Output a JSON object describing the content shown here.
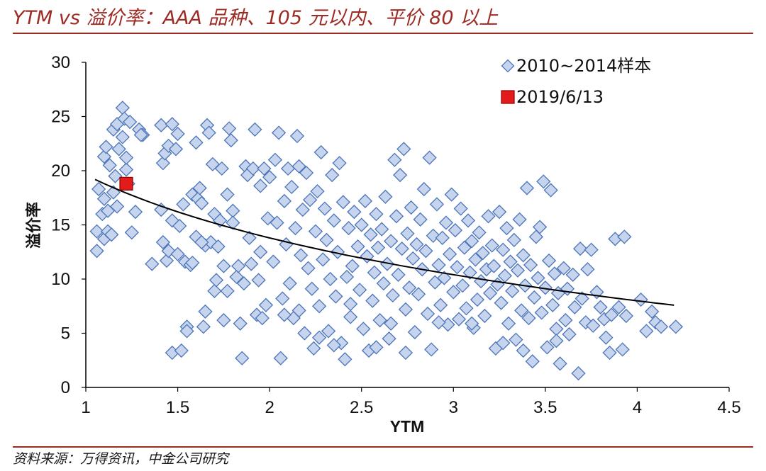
{
  "header": {
    "title": "YTM vs  溢价率：AAA 品种、105 元以内、平价 80 以上"
  },
  "footer": {
    "source": "资料来源：万得资讯，中金公司研究"
  },
  "colors": {
    "accent": "#9c2b24",
    "scatter_fill": "#c6d4ee",
    "scatter_stroke": "#4b74b9",
    "highlight": "#e31b1b",
    "trend": "#000000"
  },
  "chart_data": {
    "type": "scatter",
    "xlabel": "YTM",
    "ylabel": "溢价率",
    "xlim": [
      1,
      4.5
    ],
    "ylim": [
      0,
      30
    ],
    "xticks": [
      "1",
      "1.5",
      "2",
      "2.5",
      "3",
      "3.5",
      "4",
      "4.5"
    ],
    "yticks": [
      "0",
      "5",
      "10",
      "15",
      "20",
      "25",
      "30"
    ],
    "grid": false,
    "legend_position": "top-right",
    "series": [
      {
        "name": "2010~2014样本",
        "marker": "diamond",
        "points": [
          [
            1.06,
            12.6
          ],
          [
            1.06,
            14.4
          ],
          [
            1.07,
            18.3
          ],
          [
            1.09,
            16.0
          ],
          [
            1.1,
            13.7
          ],
          [
            1.1,
            17.4
          ],
          [
            1.1,
            21.3
          ],
          [
            1.11,
            22.2
          ],
          [
            1.12,
            14.4
          ],
          [
            1.12,
            16.3
          ],
          [
            1.13,
            20.5
          ],
          [
            1.14,
            14.1
          ],
          [
            1.15,
            18.0
          ],
          [
            1.15,
            23.8
          ],
          [
            1.16,
            19.5
          ],
          [
            1.17,
            24.3
          ],
          [
            1.17,
            16.7
          ],
          [
            1.18,
            22.0
          ],
          [
            1.2,
            25.8
          ],
          [
            1.2,
            23.1
          ],
          [
            1.21,
            24.8
          ],
          [
            1.22,
            20.1
          ],
          [
            1.22,
            21.2
          ],
          [
            1.23,
            18.8
          ],
          [
            1.24,
            24.5
          ],
          [
            1.25,
            14.3
          ],
          [
            1.27,
            16.2
          ],
          [
            1.29,
            23.8
          ],
          [
            1.31,
            23.3
          ],
          [
            1.41,
            24.2
          ],
          [
            1.41,
            16.4
          ],
          [
            1.42,
            20.7
          ],
          [
            1.42,
            13.4
          ],
          [
            1.43,
            21.6
          ],
          [
            1.44,
            11.7
          ],
          [
            1.45,
            22.3
          ],
          [
            1.45,
            12.6
          ],
          [
            1.47,
            24.3
          ],
          [
            1.47,
            15.4
          ],
          [
            1.47,
            3.2
          ],
          [
            1.49,
            22.0
          ],
          [
            1.5,
            23.4
          ],
          [
            1.5,
            12.3
          ],
          [
            1.51,
            14.9
          ],
          [
            1.52,
            3.4
          ],
          [
            1.53,
            16.9
          ],
          [
            1.54,
            11.6
          ],
          [
            1.55,
            5.6
          ],
          [
            1.55,
            5.2
          ],
          [
            1.57,
            11.3
          ],
          [
            1.58,
            17.8
          ],
          [
            1.6,
            22.6
          ],
          [
            1.6,
            13.9
          ],
          [
            1.61,
            17.4
          ],
          [
            1.62,
            18.4
          ],
          [
            1.63,
            17.0
          ],
          [
            1.64,
            5.6
          ],
          [
            1.65,
            13.1
          ],
          [
            1.65,
            7.0
          ],
          [
            1.66,
            24.2
          ],
          [
            1.67,
            23.5
          ],
          [
            1.68,
            13.4
          ],
          [
            1.69,
            20.6
          ],
          [
            1.7,
            16.0
          ],
          [
            1.7,
            8.9
          ],
          [
            1.71,
            9.9
          ],
          [
            1.72,
            13.0
          ],
          [
            1.73,
            15.4
          ],
          [
            1.74,
            20.2
          ],
          [
            1.75,
            11.2
          ],
          [
            1.75,
            6.2
          ],
          [
            1.77,
            8.9
          ],
          [
            1.77,
            17.8
          ],
          [
            1.78,
            23.9
          ],
          [
            1.79,
            22.8
          ],
          [
            1.8,
            16.3
          ],
          [
            1.82,
            10.2
          ],
          [
            1.83,
            11.2
          ],
          [
            1.84,
            5.9
          ],
          [
            1.85,
            2.7
          ],
          [
            1.86,
            9.6
          ],
          [
            1.87,
            20.4
          ],
          [
            1.88,
            19.6
          ],
          [
            1.89,
            13.8
          ],
          [
            1.9,
            11.4
          ],
          [
            1.91,
            20.2
          ],
          [
            1.92,
            23.8
          ],
          [
            1.93,
            6.7
          ],
          [
            1.94,
            9.9
          ],
          [
            1.95,
            12.5
          ],
          [
            1.95,
            18.6
          ],
          [
            1.97,
            20.2
          ],
          [
            1.98,
            7.6
          ],
          [
            1.99,
            15.6
          ],
          [
            2.0,
            19.4
          ],
          [
            2.02,
            11.6
          ],
          [
            2.03,
            21.0
          ],
          [
            2.04,
            15.2
          ],
          [
            2.05,
            23.5
          ],
          [
            2.06,
            2.7
          ],
          [
            2.07,
            8.2
          ],
          [
            2.08,
            17.2
          ],
          [
            2.09,
            13.2
          ],
          [
            2.1,
            20.2
          ],
          [
            2.11,
            9.6
          ],
          [
            2.12,
            18.5
          ],
          [
            2.13,
            6.4
          ],
          [
            2.14,
            14.7
          ],
          [
            2.15,
            23.2
          ],
          [
            2.16,
            20.4
          ],
          [
            2.17,
            12.2
          ],
          [
            2.18,
            16.4
          ],
          [
            2.19,
            5.0
          ],
          [
            2.2,
            19.8
          ],
          [
            2.21,
            11.0
          ],
          [
            2.22,
            17.3
          ],
          [
            2.23,
            9.1
          ],
          [
            2.24,
            3.6
          ],
          [
            2.25,
            14.4
          ],
          [
            2.26,
            18.1
          ],
          [
            2.27,
            7.5
          ],
          [
            2.28,
            21.7
          ],
          [
            2.29,
            11.8
          ],
          [
            2.3,
            16.5
          ],
          [
            2.31,
            13.6
          ],
          [
            2.32,
            5.2
          ],
          [
            2.33,
            10.0
          ],
          [
            2.34,
            19.6
          ],
          [
            2.35,
            15.4
          ],
          [
            2.36,
            8.4
          ],
          [
            2.37,
            12.5
          ],
          [
            2.38,
            20.7
          ],
          [
            2.39,
            4.1
          ],
          [
            2.4,
            17.1
          ],
          [
            2.41,
            2.6
          ],
          [
            2.42,
            10.2
          ],
          [
            2.43,
            14.7
          ],
          [
            2.44,
            6.5
          ],
          [
            2.45,
            11.2
          ],
          [
            2.46,
            16.2
          ],
          [
            2.48,
            13.0
          ],
          [
            2.49,
            9.0
          ],
          [
            2.5,
            15.0
          ],
          [
            2.51,
            5.4
          ],
          [
            2.52,
            17.2
          ],
          [
            2.53,
            12.1
          ],
          [
            2.54,
            3.4
          ],
          [
            2.55,
            14.1
          ],
          [
            2.56,
            8.0
          ],
          [
            2.57,
            10.6
          ],
          [
            2.58,
            16.0
          ],
          [
            2.59,
            12.9
          ],
          [
            2.6,
            6.2
          ],
          [
            2.61,
            14.6
          ],
          [
            2.62,
            9.6
          ],
          [
            2.63,
            17.6
          ],
          [
            2.64,
            11.4
          ],
          [
            2.65,
            4.5
          ],
          [
            2.66,
            13.5
          ],
          [
            2.67,
            8.5
          ],
          [
            2.68,
            21.0
          ],
          [
            2.69,
            15.8
          ],
          [
            2.7,
            10.4
          ],
          [
            2.71,
            19.6
          ],
          [
            2.72,
            12.8
          ],
          [
            2.73,
            22.0
          ],
          [
            2.74,
            7.2
          ],
          [
            2.75,
            14.2
          ],
          [
            2.76,
            9.2
          ],
          [
            2.77,
            16.6
          ],
          [
            2.78,
            11.9
          ],
          [
            2.79,
            5.1
          ],
          [
            2.8,
            13.2
          ],
          [
            2.81,
            8.6
          ],
          [
            2.82,
            15.5
          ],
          [
            2.83,
            10.9
          ],
          [
            2.84,
            18.3
          ],
          [
            2.85,
            12.6
          ],
          [
            2.86,
            6.8
          ],
          [
            2.87,
            21.2
          ],
          [
            2.88,
            3.5
          ],
          [
            2.89,
            14.0
          ],
          [
            2.9,
            9.7
          ],
          [
            2.91,
            16.9
          ],
          [
            2.92,
            11.3
          ],
          [
            2.93,
            7.6
          ],
          [
            2.94,
            13.8
          ],
          [
            2.95,
            10.1
          ],
          [
            2.96,
            15.2
          ],
          [
            2.97,
            5.8
          ],
          [
            2.98,
            12.3
          ],
          [
            2.99,
            17.8
          ],
          [
            3.0,
            8.8
          ],
          [
            3.01,
            14.5
          ],
          [
            3.02,
            11.1
          ],
          [
            3.03,
            6.3
          ],
          [
            3.04,
            16.5
          ],
          [
            3.05,
            9.4
          ],
          [
            3.06,
            12.9
          ],
          [
            3.07,
            7.3
          ],
          [
            3.08,
            15.4
          ],
          [
            3.09,
            10.6
          ],
          [
            3.1,
            13.5
          ],
          [
            3.11,
            5.5
          ],
          [
            3.12,
            11.8
          ],
          [
            3.13,
            8.1
          ],
          [
            3.14,
            14.3
          ],
          [
            3.15,
            9.8
          ],
          [
            3.16,
            12.4
          ],
          [
            3.17,
            6.6
          ],
          [
            3.18,
            10.9
          ],
          [
            3.19,
            15.8
          ],
          [
            3.2,
            8.7
          ],
          [
            3.21,
            13.1
          ],
          [
            3.22,
            11.2
          ],
          [
            3.23,
            3.6
          ],
          [
            3.24,
            9.5
          ],
          [
            3.25,
            16.2
          ],
          [
            3.26,
            7.8
          ],
          [
            3.27,
            12.7
          ],
          [
            3.28,
            10.3
          ],
          [
            3.29,
            14.7
          ],
          [
            3.3,
            5.9
          ],
          [
            3.31,
            11.6
          ],
          [
            3.32,
            8.9
          ],
          [
            3.33,
            13.6
          ],
          [
            3.34,
            4.4
          ],
          [
            3.35,
            10.8
          ],
          [
            3.36,
            15.5
          ],
          [
            3.37,
            7.1
          ],
          [
            3.38,
            12.2
          ],
          [
            3.39,
            9.4
          ],
          [
            3.4,
            18.4
          ],
          [
            3.41,
            6.4
          ],
          [
            3.42,
            11.3
          ],
          [
            3.43,
            2.4
          ],
          [
            3.44,
            8.3
          ],
          [
            3.45,
            13.9
          ],
          [
            3.46,
            10.1
          ],
          [
            3.47,
            14.8
          ],
          [
            3.48,
            6.9
          ],
          [
            3.49,
            19.0
          ],
          [
            3.5,
            9.2
          ],
          [
            3.51,
            3.7
          ],
          [
            3.52,
            11.7
          ],
          [
            3.53,
            18.2
          ],
          [
            3.54,
            7.6
          ],
          [
            3.55,
            10.5
          ],
          [
            3.56,
            5.4
          ],
          [
            3.57,
            8.7
          ],
          [
            3.58,
            2.2
          ],
          [
            3.6,
            11.0
          ],
          [
            3.61,
            6.2
          ],
          [
            3.62,
            9.1
          ],
          [
            3.63,
            4.9
          ],
          [
            3.65,
            10.4
          ],
          [
            3.66,
            7.4
          ],
          [
            3.68,
            1.3
          ],
          [
            3.69,
            12.8
          ],
          [
            3.7,
            8.2
          ],
          [
            3.72,
            6.0
          ],
          [
            3.73,
            10.9
          ],
          [
            3.75,
            12.7
          ],
          [
            3.76,
            5.7
          ],
          [
            3.78,
            8.8
          ],
          [
            3.8,
            7.4
          ],
          [
            3.82,
            6.3
          ],
          [
            3.83,
            4.6
          ],
          [
            3.85,
            3.2
          ],
          [
            3.86,
            6.7
          ],
          [
            3.88,
            13.7
          ],
          [
            3.9,
            7.4
          ],
          [
            3.92,
            3.5
          ],
          [
            3.93,
            13.9
          ],
          [
            3.94,
            6.6
          ],
          [
            4.02,
            8.1
          ],
          [
            4.05,
            5.2
          ],
          [
            4.08,
            7.0
          ],
          [
            4.1,
            6.0
          ],
          [
            4.13,
            5.6
          ],
          [
            4.21,
            5.6
          ],
          [
            1.3,
            23.3
          ],
          [
            1.36,
            11.4
          ],
          [
            1.58,
            11.5
          ],
          [
            1.63,
            13.4
          ],
          [
            1.8,
            15.2
          ],
          [
            1.96,
            6.4
          ],
          [
            2.08,
            6.7
          ],
          [
            2.16,
            7.1
          ],
          [
            2.27,
            4.6
          ],
          [
            2.35,
            3.9
          ],
          [
            2.44,
            7.7
          ],
          [
            2.58,
            3.7
          ],
          [
            2.66,
            5.9
          ],
          [
            2.74,
            3.2
          ],
          [
            2.92,
            6.0
          ],
          [
            3.1,
            5.9
          ],
          [
            3.27,
            4.1
          ],
          [
            3.38,
            3.4
          ],
          [
            3.56,
            4.3
          ]
        ]
      },
      {
        "name": "2019/6/13",
        "marker": "square",
        "points": [
          [
            1.22,
            18.8
          ]
        ]
      }
    ],
    "trendline": {
      "type": "log",
      "x_range": [
        1.05,
        4.2
      ]
    }
  }
}
